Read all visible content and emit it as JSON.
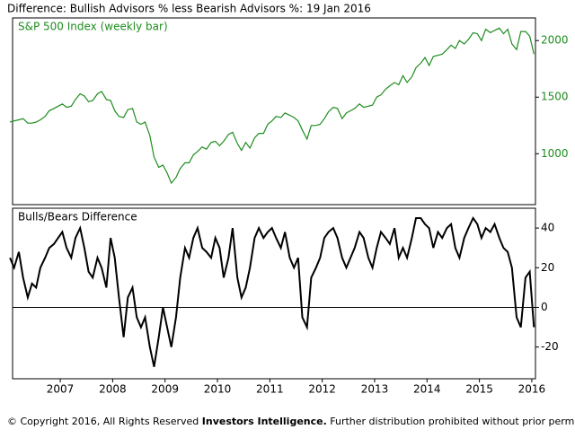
{
  "chart_data": {
    "type": "line",
    "title": "Difference: Bullish Advisors % less Bearish Advisors %: 19 Jan 2016",
    "x": [
      2006.04,
      2006.12,
      2006.21,
      2006.29,
      2006.38,
      2006.46,
      2006.54,
      2006.62,
      2006.71,
      2006.79,
      2006.88,
      2006.96,
      2007.04,
      2007.12,
      2007.21,
      2007.29,
      2007.38,
      2007.46,
      2007.54,
      2007.62,
      2007.71,
      2007.79,
      2007.88,
      2007.96,
      2008.04,
      2008.12,
      2008.21,
      2008.29,
      2008.38,
      2008.46,
      2008.54,
      2008.62,
      2008.71,
      2008.79,
      2008.88,
      2008.96,
      2009.04,
      2009.12,
      2009.21,
      2009.29,
      2009.38,
      2009.46,
      2009.54,
      2009.62,
      2009.71,
      2009.79,
      2009.88,
      2009.96,
      2010.04,
      2010.12,
      2010.21,
      2010.29,
      2010.38,
      2010.46,
      2010.54,
      2010.62,
      2010.71,
      2010.79,
      2010.88,
      2010.96,
      2011.04,
      2011.12,
      2011.21,
      2011.29,
      2011.38,
      2011.46,
      2011.54,
      2011.62,
      2011.71,
      2011.79,
      2011.88,
      2011.96,
      2012.04,
      2012.12,
      2012.21,
      2012.29,
      2012.38,
      2012.46,
      2012.54,
      2012.62,
      2012.71,
      2012.79,
      2012.88,
      2012.96,
      2013.04,
      2013.12,
      2013.21,
      2013.29,
      2013.38,
      2013.46,
      2013.54,
      2013.62,
      2013.71,
      2013.79,
      2013.88,
      2013.96,
      2014.04,
      2014.12,
      2014.21,
      2014.29,
      2014.38,
      2014.46,
      2014.54,
      2014.62,
      2014.71,
      2014.79,
      2014.88,
      2014.96,
      2015.04,
      2015.12,
      2015.21,
      2015.29,
      2015.38,
      2015.46,
      2015.54,
      2015.62,
      2015.71,
      2015.79,
      2015.88,
      2015.96,
      2016.04
    ],
    "xlim": [
      2006.09,
      2016.07
    ],
    "xticks": [
      2007,
      2008,
      2009,
      2010,
      2011,
      2012,
      2013,
      2014,
      2015,
      2016
    ],
    "panels": [
      {
        "label": "S&P 500 Index (weekly bar)",
        "ylim": [
          550,
          2200
        ],
        "yticks": [
          1000,
          1500,
          2000
        ],
        "color": "#1e8c1e",
        "series": [
          {
            "name": "S&P 500 Index (weekly bar)",
            "color": "#1e8c1e",
            "values": [
              1280,
              1290,
              1300,
              1310,
              1270,
              1270,
              1280,
              1300,
              1330,
              1380,
              1400,
              1420,
              1440,
              1410,
              1420,
              1480,
              1530,
              1510,
              1460,
              1470,
              1530,
              1550,
              1480,
              1470,
              1380,
              1330,
              1320,
              1390,
              1400,
              1280,
              1260,
              1280,
              1160,
              970,
              880,
              900,
              830,
              740,
              790,
              870,
              920,
              920,
              990,
              1020,
              1060,
              1040,
              1100,
              1110,
              1070,
              1110,
              1170,
              1190,
              1090,
              1030,
              1100,
              1050,
              1140,
              1180,
              1180,
              1260,
              1290,
              1330,
              1320,
              1360,
              1340,
              1320,
              1290,
              1210,
              1130,
              1250,
              1250,
              1260,
              1310,
              1370,
              1410,
              1400,
              1310,
              1360,
              1380,
              1400,
              1440,
              1410,
              1420,
              1430,
              1500,
              1520,
              1570,
              1600,
              1630,
              1610,
              1690,
              1630,
              1680,
              1760,
              1800,
              1850,
              1780,
              1860,
              1870,
              1880,
              1920,
              1960,
              1930,
              2000,
              1970,
              2010,
              2070,
              2060,
              2000,
              2100,
              2070,
              2090,
              2110,
              2060,
              2100,
              1970,
              1920,
              2080,
              2080,
              2040,
              1880
            ]
          }
        ]
      },
      {
        "label": "Bulls/Bears Difference",
        "ylim": [
          -36,
          50
        ],
        "yticks": [
          -20,
          0,
          20,
          40
        ],
        "hline": 0,
        "color": "#000000",
        "series": [
          {
            "name": "Bulls/Bears Difference",
            "color": "#000000",
            "values": [
              25,
              20,
              28,
              15,
              5,
              12,
              10,
              20,
              25,
              30,
              32,
              35,
              38,
              30,
              25,
              35,
              40,
              30,
              18,
              15,
              25,
              20,
              10,
              35,
              25,
              5,
              -15,
              5,
              10,
              -5,
              -10,
              -5,
              -20,
              -30,
              -15,
              0,
              -10,
              -20,
              -5,
              15,
              30,
              25,
              35,
              40,
              30,
              28,
              25,
              35,
              30,
              15,
              25,
              40,
              15,
              5,
              10,
              20,
              35,
              40,
              35,
              38,
              40,
              35,
              30,
              38,
              25,
              20,
              25,
              -5,
              -10,
              15,
              20,
              25,
              35,
              38,
              40,
              35,
              25,
              20,
              25,
              30,
              38,
              35,
              25,
              20,
              30,
              38,
              35,
              32,
              40,
              25,
              30,
              25,
              35,
              45,
              45,
              42,
              40,
              30,
              38,
              35,
              40,
              42,
              30,
              25,
              35,
              40,
              45,
              42,
              35,
              40,
              38,
              42,
              35,
              30,
              28,
              20,
              -5,
              -10,
              15,
              18,
              -10
            ]
          }
        ]
      }
    ],
    "footer": {
      "prefix": "© Copyright 2016, All Rights Reserved ",
      "brand": "Investors Intelligence.",
      "suffix": " Further distribution prohibited without prior permission."
    }
  }
}
